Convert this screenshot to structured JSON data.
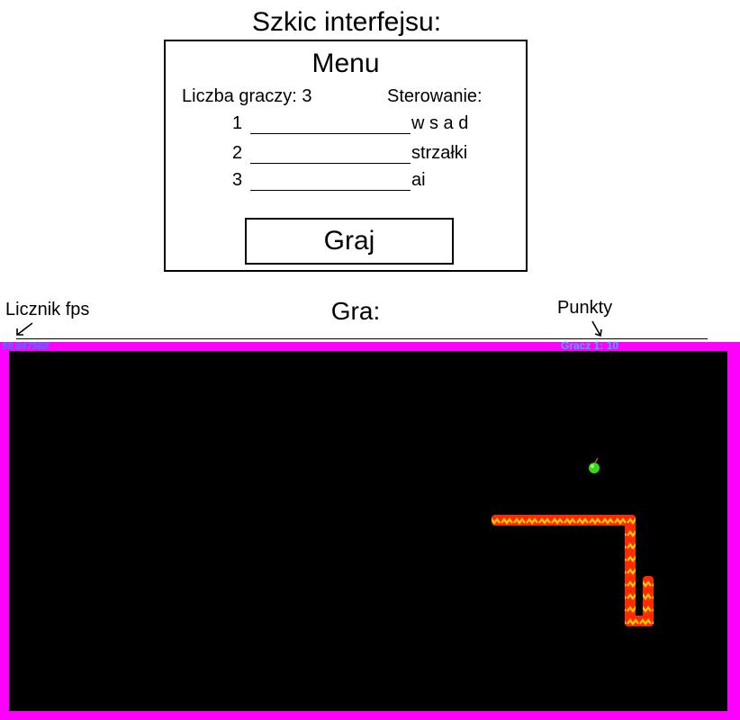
{
  "sketch": {
    "title": "Szkic interfejsu:"
  },
  "menu": {
    "title": "Menu",
    "players_count_label": "Liczba graczy: 3",
    "controls_header": "Sterowanie:",
    "players": [
      {
        "number": "1",
        "control": "w s a d"
      },
      {
        "number": "2",
        "control": "strzałki"
      },
      {
        "number": "3",
        "control": "ai"
      }
    ],
    "play_button": "Graj"
  },
  "game": {
    "title": "Gra:",
    "fps_label": "Licznik fps",
    "points_label": "Punkty",
    "fps_value": "59.847988",
    "score": "Gracz 1: 10",
    "colors": {
      "border": "#ff00ff",
      "board": "#000000",
      "snake_body": "#ff2a00",
      "snake_pattern": "#ffd400",
      "apple": "#3bd41c",
      "hud_text": "#33b5ff"
    }
  }
}
